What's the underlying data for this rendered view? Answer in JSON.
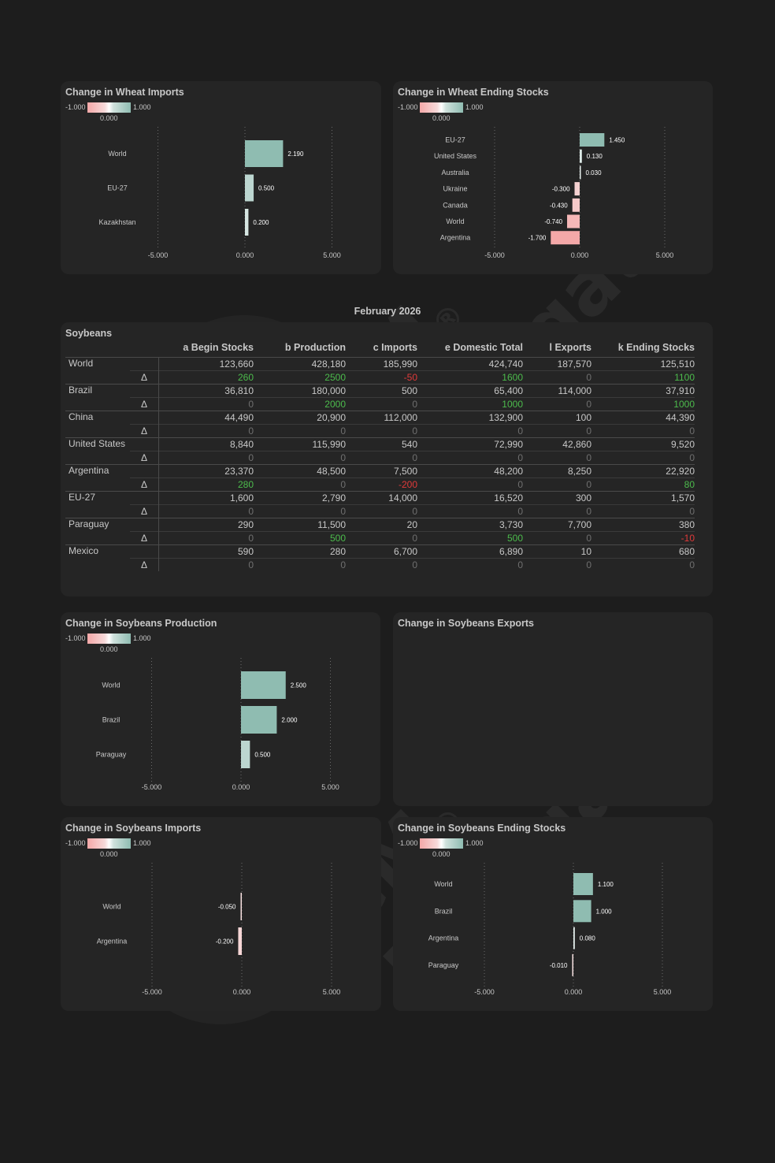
{
  "colors": {
    "positive_bar": "#8fbcb1",
    "negative_bar": "#f4a8a8",
    "positive_text": "#4cbb4c",
    "negative_text": "#e03a3a"
  },
  "watermark": {
    "line1": "CM",
    "line2": "Navigator",
    "mark": "®"
  },
  "legend": {
    "min": "-1.000",
    "mid": "0.000",
    "max": "1.000"
  },
  "date_title": "February 2026",
  "table": {
    "title": "Soybeans",
    "delta_symbol": "Δ",
    "columns": [
      "a Begin Stocks",
      "b Production",
      "c Imports",
      "e Domestic Total",
      "l Exports",
      "k Ending Stocks"
    ],
    "rows": [
      {
        "country": "World",
        "values": [
          "123,660",
          "428,180",
          "185,990",
          "424,740",
          "187,570",
          "125,510"
        ],
        "deltas": [
          "260",
          "2500",
          "-50",
          "1600",
          "0",
          "1100"
        ]
      },
      {
        "country": "Brazil",
        "values": [
          "36,810",
          "180,000",
          "500",
          "65,400",
          "114,000",
          "37,910"
        ],
        "deltas": [
          "0",
          "2000",
          "0",
          "1000",
          "0",
          "1000"
        ]
      },
      {
        "country": "China",
        "values": [
          "44,490",
          "20,900",
          "112,000",
          "132,900",
          "100",
          "44,390"
        ],
        "deltas": [
          "0",
          "0",
          "0",
          "0",
          "0",
          "0"
        ]
      },
      {
        "country": "United States",
        "values": [
          "8,840",
          "115,990",
          "540",
          "72,990",
          "42,860",
          "9,520"
        ],
        "deltas": [
          "0",
          "0",
          "0",
          "0",
          "0",
          "0"
        ]
      },
      {
        "country": "Argentina",
        "values": [
          "23,370",
          "48,500",
          "7,500",
          "48,200",
          "8,250",
          "22,920"
        ],
        "deltas": [
          "280",
          "0",
          "-200",
          "0",
          "0",
          "80"
        ]
      },
      {
        "country": "EU-27",
        "values": [
          "1,600",
          "2,790",
          "14,000",
          "16,520",
          "300",
          "1,570"
        ],
        "deltas": [
          "0",
          "0",
          "0",
          "0",
          "0",
          "0"
        ]
      },
      {
        "country": "Paraguay",
        "values": [
          "290",
          "11,500",
          "20",
          "3,730",
          "7,700",
          "380"
        ],
        "deltas": [
          "0",
          "500",
          "0",
          "500",
          "0",
          "-10"
        ]
      },
      {
        "country": "Mexico",
        "values": [
          "590",
          "280",
          "6,700",
          "6,890",
          "10",
          "680"
        ],
        "deltas": [
          "0",
          "0",
          "0",
          "0",
          "0",
          "0"
        ]
      }
    ]
  },
  "chart_data": [
    {
      "id": "wheat-imports",
      "type": "bar",
      "orientation": "horizontal",
      "title": "Change in Wheat Imports",
      "categories": [
        "World",
        "EU-27",
        "Kazakhstan"
      ],
      "values": [
        2.19,
        0.5,
        0.2
      ],
      "value_labels": [
        "2.190",
        "0.500",
        "0.200"
      ],
      "xlim": [
        -10,
        10
      ],
      "ticks": [
        -5,
        0,
        5
      ],
      "tick_labels": [
        "-5.000",
        "0.000",
        "5.000"
      ],
      "grid": true
    },
    {
      "id": "wheat-ending-stocks",
      "type": "bar",
      "orientation": "horizontal",
      "title": "Change in Wheat Ending Stocks",
      "categories": [
        "EU-27",
        "United States",
        "Australia",
        "Ukraine",
        "Canada",
        "World",
        "Argentina"
      ],
      "values": [
        1.45,
        0.13,
        0.03,
        -0.3,
        -0.43,
        -0.74,
        -1.7
      ],
      "value_labels": [
        "1.450",
        "0.130",
        "0.030",
        "-0.300",
        "-0.430",
        "-0.740",
        "-1.700"
      ],
      "xlim": [
        -10,
        10
      ],
      "ticks": [
        -5,
        0,
        5
      ],
      "tick_labels": [
        "-5.000",
        "0.000",
        "5.000"
      ],
      "grid": true
    },
    {
      "id": "soy-production",
      "type": "bar",
      "orientation": "horizontal",
      "title": "Change in Soybeans Production",
      "categories": [
        "World",
        "Brazil",
        "Paraguay"
      ],
      "values": [
        2.5,
        2.0,
        0.5
      ],
      "value_labels": [
        "2.500",
        "2.000",
        "0.500"
      ],
      "xlim": [
        -10,
        10
      ],
      "ticks": [
        -5,
        0,
        5
      ],
      "tick_labels": [
        "-5.000",
        "0.000",
        "5.000"
      ],
      "grid": true
    },
    {
      "id": "soy-exports",
      "type": "bar",
      "orientation": "horizontal",
      "title": "Change in Soybeans Exports",
      "categories": [],
      "values": [],
      "value_labels": [],
      "ticks": [],
      "tick_labels": []
    },
    {
      "id": "soy-imports",
      "type": "bar",
      "orientation": "horizontal",
      "title": "Change in Soybeans Imports",
      "categories": [
        "World",
        "Argentina"
      ],
      "values": [
        -0.05,
        -0.2
      ],
      "value_labels": [
        "-0.050",
        "-0.200"
      ],
      "xlim": [
        -10,
        10
      ],
      "ticks": [
        -5,
        0,
        5
      ],
      "tick_labels": [
        "-5.000",
        "0.000",
        "5.000"
      ],
      "grid": true
    },
    {
      "id": "soy-ending-stocks",
      "type": "bar",
      "orientation": "horizontal",
      "title": "Change in Soybeans Ending Stocks",
      "categories": [
        "World",
        "Brazil",
        "Argentina",
        "Paraguay"
      ],
      "values": [
        1.1,
        1.0,
        0.08,
        -0.01
      ],
      "value_labels": [
        "1.100",
        "1.000",
        "0.080",
        "-0.010"
      ],
      "xlim": [
        -10,
        10
      ],
      "ticks": [
        -5,
        0,
        5
      ],
      "tick_labels": [
        "-5.000",
        "0.000",
        "5.000"
      ],
      "grid": true
    }
  ]
}
